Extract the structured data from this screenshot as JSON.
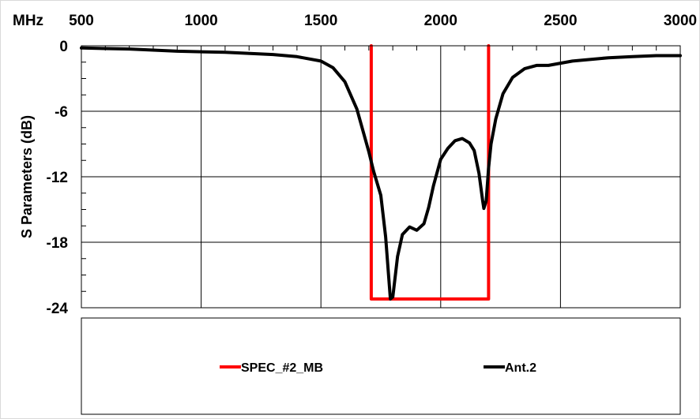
{
  "chart_data": {
    "type": "line",
    "x_unit": "MHz",
    "ylabel": "S Parameters (dB)",
    "xlim": [
      500,
      3000
    ],
    "ylim": [
      -24,
      0
    ],
    "x_ticks": [
      500,
      1000,
      1500,
      2000,
      2500,
      3000
    ],
    "y_ticks": [
      0,
      -6,
      -12,
      -18,
      -24
    ],
    "grid": true,
    "legend_position": "bottom",
    "series": [
      {
        "name": "SPEC_#2_MB",
        "color": "#ff0000",
        "x": [
          1710,
          1710,
          2200,
          2200
        ],
        "y": [
          0,
          -23.2,
          -23.2,
          0
        ]
      },
      {
        "name": "Ant.2",
        "color": "#000000",
        "x": [
          500,
          700,
          900,
          1100,
          1300,
          1400,
          1500,
          1550,
          1600,
          1650,
          1700,
          1720,
          1750,
          1770,
          1790,
          1800,
          1820,
          1840,
          1870,
          1900,
          1930,
          1950,
          1970,
          2000,
          2030,
          2060,
          2090,
          2120,
          2140,
          2160,
          2175,
          2180,
          2190,
          2200,
          2210,
          2230,
          2260,
          2300,
          2350,
          2400,
          2450,
          2500,
          2550,
          2600,
          2650,
          2700,
          2800,
          2900,
          3000
        ],
        "y": [
          -0.2,
          -0.3,
          -0.5,
          -0.6,
          -0.8,
          -1.0,
          -1.4,
          -2.0,
          -3.3,
          -5.8,
          -9.7,
          -11.5,
          -13.7,
          -17.5,
          -23.2,
          -23.0,
          -19.3,
          -17.3,
          -16.6,
          -16.9,
          -16.3,
          -14.8,
          -12.8,
          -10.4,
          -9.4,
          -8.7,
          -8.5,
          -8.9,
          -9.6,
          -11.7,
          -14.2,
          -14.9,
          -14.2,
          -11.2,
          -9.0,
          -6.7,
          -4.4,
          -2.9,
          -2.1,
          -1.8,
          -1.8,
          -1.6,
          -1.4,
          -1.3,
          -1.2,
          -1.1,
          -1.0,
          -0.9,
          -0.9
        ]
      }
    ]
  }
}
